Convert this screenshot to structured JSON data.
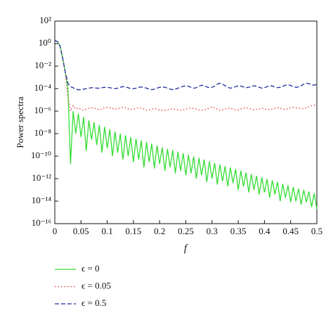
{
  "chart_data": {
    "type": "line",
    "y_label": "Power spectra",
    "x_label": "f",
    "log_y": true,
    "legend": "bottom-left",
    "xlim": [
      0,
      0.5
    ],
    "xticks": [
      0,
      0.05,
      0.1,
      0.15,
      0.2,
      0.25,
      0.3,
      0.35,
      0.4,
      0.45,
      0.5
    ],
    "ylim": [
      1e-16,
      100
    ],
    "yticks": [
      {
        "value": 100,
        "label": "10²"
      },
      {
        "value": 1,
        "label": "10⁰"
      },
      {
        "value": 0.01,
        "label": "10⁻²"
      },
      {
        "value": 0.0001,
        "label": "10⁻⁴"
      },
      {
        "value": 1e-06,
        "label": "10⁻⁶"
      },
      {
        "value": 1e-08,
        "label": "10⁻⁸"
      },
      {
        "value": 1e-10,
        "label": "10⁻¹⁰"
      },
      {
        "value": 1e-12,
        "label": "10⁻¹²"
      },
      {
        "value": 1e-14,
        "label": "10⁻¹⁴"
      },
      {
        "value": 1e-16,
        "label": "10⁻¹⁶"
      }
    ],
    "x": [
      0,
      0.005,
      0.01,
      0.015,
      0.02,
      0.025,
      0.03,
      0.035,
      0.04,
      0.045,
      0.05,
      0.055,
      0.06,
      0.065,
      0.07,
      0.075,
      0.08,
      0.085,
      0.09,
      0.095,
      0.1,
      0.105,
      0.11,
      0.115,
      0.12,
      0.125,
      0.13,
      0.135,
      0.14,
      0.145,
      0.15,
      0.155,
      0.16,
      0.165,
      0.17,
      0.175,
      0.18,
      0.185,
      0.19,
      0.195,
      0.2,
      0.205,
      0.21,
      0.215,
      0.22,
      0.225,
      0.23,
      0.235,
      0.24,
      0.245,
      0.25,
      0.255,
      0.26,
      0.265,
      0.27,
      0.275,
      0.28,
      0.285,
      0.29,
      0.295,
      0.3,
      0.305,
      0.31,
      0.315,
      0.32,
      0.325,
      0.33,
      0.335,
      0.34,
      0.345,
      0.35,
      0.355,
      0.36,
      0.365,
      0.37,
      0.375,
      0.38,
      0.385,
      0.39,
      0.395,
      0.4,
      0.405,
      0.41,
      0.415,
      0.42,
      0.425,
      0.43,
      0.435,
      0.44,
      0.445,
      0.45,
      0.455,
      0.46,
      0.465,
      0.47,
      0.475,
      0.48,
      0.485,
      0.49,
      0.495,
      0.5
    ],
    "series": [
      {
        "name": "ϵ = 0",
        "color": "#33dd33",
        "dash": "none",
        "values": [
          2,
          1.5,
          0.6,
          0.05,
          0.003,
          0.0001,
          2e-11,
          1e-06,
          1e-08,
          6e-07,
          5e-09,
          3e-07,
          3e-10,
          1.5e-07,
          3e-09,
          1e-07,
          1e-09,
          6e-08,
          2e-10,
          4e-08,
          5e-10,
          2.5e-08,
          1e-10,
          1.5e-08,
          2e-10,
          1e-08,
          5e-11,
          7e-09,
          1e-10,
          5e-09,
          3e-11,
          3.5e-09,
          5e-11,
          2.5e-09,
          1e-11,
          1.8e-09,
          3e-11,
          1.3e-09,
          8e-12,
          9e-10,
          2e-11,
          6e-10,
          5e-12,
          4.5e-10,
          1e-11,
          3.5e-10,
          3e-12,
          2.5e-10,
          5e-12,
          1.8e-10,
          2e-12,
          1.3e-10,
          3e-12,
          9e-11,
          1e-12,
          7e-11,
          2e-12,
          5e-11,
          5e-13,
          3.5e-11,
          1e-12,
          2.5e-11,
          3e-13,
          1.8e-11,
          6e-13,
          1.3e-11,
          2e-13,
          1e-11,
          4e-13,
          7e-12,
          1e-13,
          5e-12,
          2e-13,
          3.5e-12,
          6e-14,
          2.5e-12,
          1e-13,
          1.8e-12,
          4e-14,
          1.3e-12,
          6e-14,
          9e-13,
          2e-14,
          7e-13,
          4e-14,
          5e-13,
          1e-14,
          3.5e-13,
          2e-14,
          2.5e-13,
          8e-15,
          1.8e-13,
          1e-14,
          1.3e-13,
          5e-15,
          1e-13,
          8e-15,
          7e-14,
          3e-15,
          5e-14,
          2e-15
        ]
      },
      {
        "name": "ϵ = 0.05",
        "color": "#dd3333",
        "dash": "1.5 3",
        "values": [
          2,
          1.5,
          0.6,
          0.05,
          0.003,
          2e-05,
          1e-06,
          3e-06,
          1.5e-06,
          2e-06,
          1.5e-06,
          1.2e-06,
          1.5e-06,
          1.8e-06,
          2e-06,
          1.8e-06,
          1.5e-06,
          1.3e-06,
          1.5e-06,
          2e-06,
          2.2e-06,
          2e-06,
          1.7e-06,
          1.5e-06,
          1.6e-06,
          2e-06,
          2.2e-06,
          2e-06,
          1.6e-06,
          1.4e-06,
          1.5e-06,
          1.8e-06,
          2e-06,
          1.8e-06,
          1.5e-06,
          1.2e-06,
          1.3e-06,
          1.5e-06,
          1.7e-06,
          1.5e-06,
          1.3e-06,
          1.2e-06,
          1.2e-06,
          1.3e-06,
          1.5e-06,
          1.6e-06,
          1.5e-06,
          1.3e-06,
          1.2e-06,
          1.3e-06,
          1.5e-06,
          1.8e-06,
          2e-06,
          1.8e-06,
          1.5e-06,
          1.3e-06,
          1.2e-06,
          1.3e-06,
          1.5e-06,
          2e-06,
          2.5e-06,
          2e-06,
          1.5e-06,
          1.2e-06,
          1.3e-06,
          1.5e-06,
          1.8e-06,
          1.8e-06,
          1.5e-06,
          1.3e-06,
          1.3e-06,
          1.5e-06,
          1.8e-06,
          2e-06,
          1.8e-06,
          1.5e-06,
          1.3e-06,
          1.4e-06,
          1.6e-06,
          1.8e-06,
          1.6e-06,
          1.4e-06,
          1.3e-06,
          1.5e-06,
          1.8e-06,
          2e-06,
          1.8e-06,
          1.5e-06,
          1.4e-06,
          1.6e-06,
          2e-06,
          2.2e-06,
          2e-06,
          1.8e-06,
          1.6e-06,
          1.7e-06,
          2e-06,
          2.5e-06,
          3e-06,
          3.5e-06,
          3e-06
        ]
      },
      {
        "name": "ϵ = 0.5",
        "color": "#1f2a9c",
        "dash": "6 3",
        "values": [
          2,
          1.5,
          0.6,
          0.05,
          0.003,
          0.0003,
          0.00015,
          0.00012,
          9e-05,
          8e-05,
          8e-05,
          9e-05,
          0.0001,
          0.00011,
          0.00012,
          0.00012,
          0.00011,
          0.00011,
          0.00012,
          0.00013,
          0.00013,
          0.00012,
          0.00011,
          0.0001,
          0.00011,
          0.00013,
          0.00015,
          0.00014,
          0.00012,
          0.0001,
          0.0001,
          0.00011,
          0.00013,
          0.00014,
          0.00013,
          0.00011,
          9e-05,
          8e-05,
          9e-05,
          0.00011,
          0.00013,
          0.00014,
          0.00013,
          0.00011,
          9e-05,
          8e-05,
          9e-05,
          0.00011,
          0.00013,
          0.00016,
          0.00018,
          0.00016,
          0.00013,
          0.00011,
          0.00012,
          0.00016,
          0.0002,
          0.00018,
          0.00014,
          0.00012,
          0.00013,
          0.00017,
          0.00025,
          0.0003,
          0.00025,
          0.00018,
          0.00013,
          0.00011,
          0.00012,
          0.00015,
          0.00018,
          0.00017,
          0.00014,
          0.00012,
          0.00013,
          0.00016,
          0.00018,
          0.00016,
          0.00013,
          0.00011,
          0.00012,
          0.00015,
          0.00018,
          0.00017,
          0.00014,
          0.00012,
          0.00013,
          0.00016,
          0.0002,
          0.00022,
          0.00019,
          0.00015,
          0.00013,
          0.00014,
          0.00018,
          0.00025,
          0.0003,
          0.00028,
          0.00022,
          0.0002,
          0.00025
        ]
      }
    ]
  }
}
